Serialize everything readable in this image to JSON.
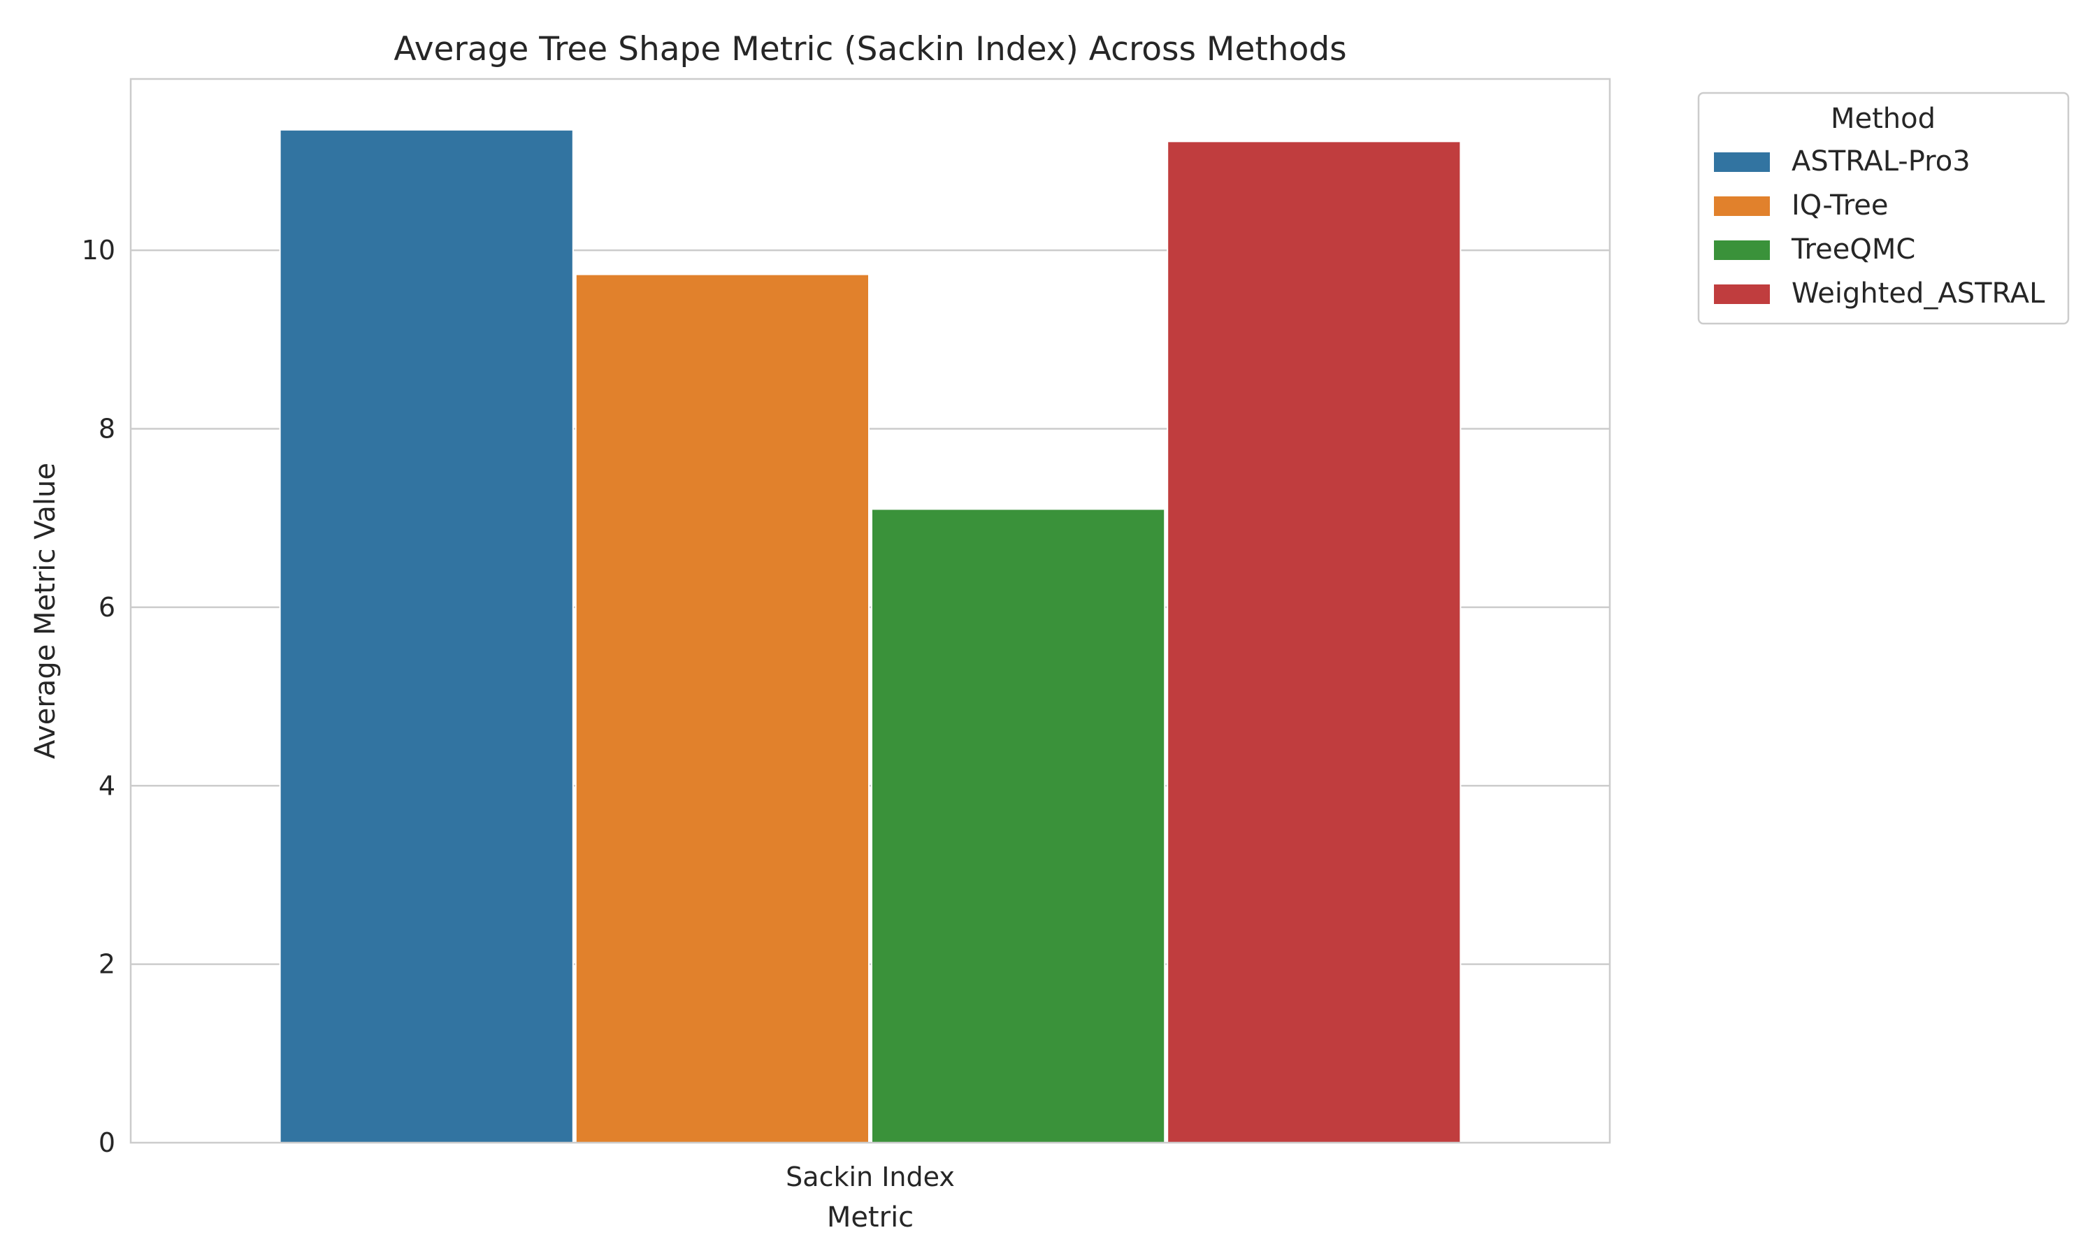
{
  "chart_data": {
    "type": "bar",
    "title": "Average Tree Shape Metric (Sackin Index) Across Methods",
    "xlabel": "Metric",
    "ylabel": "Average Metric Value",
    "categories": [
      "Sackin Index"
    ],
    "series": [
      {
        "name": "ASTRAL-Pro3",
        "values": [
          11.35
        ],
        "color": "#3274a1"
      },
      {
        "name": "IQ-Tree",
        "values": [
          9.73
        ],
        "color": "#e1812c"
      },
      {
        "name": "TreeQMC",
        "values": [
          7.1
        ],
        "color": "#3a923a"
      },
      {
        "name": "Weighted_ASTRAL",
        "values": [
          11.22
        ],
        "color": "#c03d3e"
      }
    ],
    "yticks": [
      0,
      2,
      4,
      6,
      8,
      10
    ],
    "ylim": [
      0,
      11.92
    ],
    "grid": "horizontal",
    "legend": {
      "title": "Method",
      "placement": "outside-top-right"
    }
  }
}
